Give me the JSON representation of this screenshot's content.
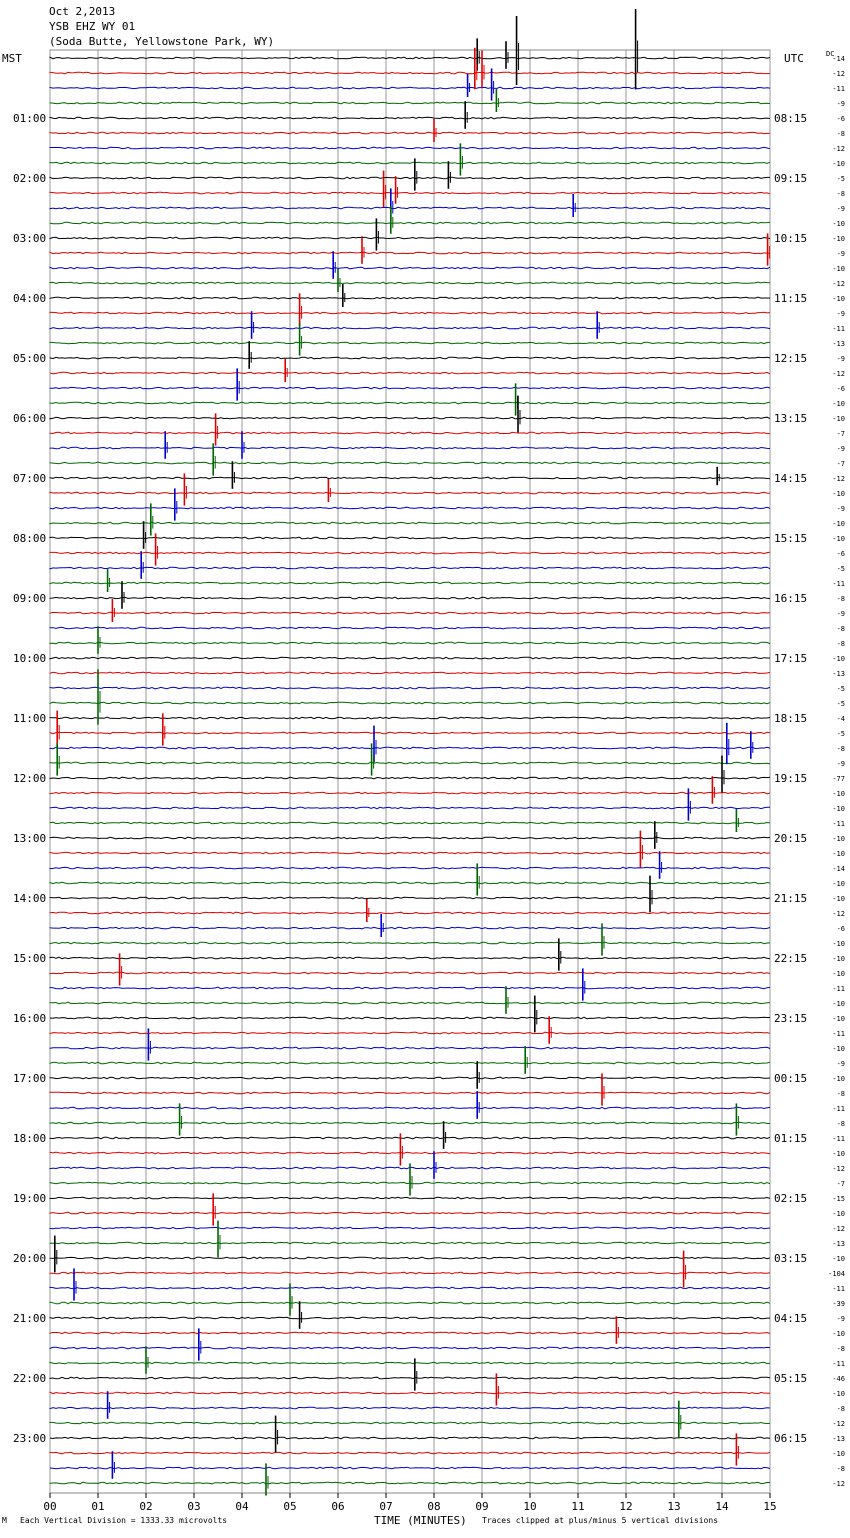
{
  "header": {
    "date": "Oct 2,2013",
    "station": "YSB EHZ WY 01",
    "location": "(Soda Butte, Yellowstone Park, WY)"
  },
  "labels": {
    "left_tz": "MST",
    "right_tz": "UTC",
    "dc": "DC"
  },
  "footer": {
    "scale": "Each Vertical Division = 1333.33 microvolts",
    "clip_note": "Traces clipped at plus/minus 5 vertical divisions",
    "mark": "M"
  },
  "chart_data": {
    "type": "helicorder",
    "xlabel": "TIME (MINUTES)",
    "x_ticks": [
      "00",
      "01",
      "02",
      "03",
      "04",
      "05",
      "06",
      "07",
      "08",
      "09",
      "10",
      "11",
      "12",
      "13",
      "14",
      "15"
    ],
    "x_range": [
      0,
      15
    ],
    "minutes_per_line": 15,
    "line_count": 96,
    "trace_colors": [
      "#000000",
      "#dd0000",
      "#0000cc",
      "#006600"
    ],
    "left_hour_labels": [
      "01:00",
      "02:00",
      "03:00",
      "04:00",
      "05:00",
      "06:00",
      "07:00",
      "08:00",
      "09:00",
      "10:00",
      "11:00",
      "12:00",
      "13:00",
      "14:00",
      "15:00",
      "16:00",
      "17:00",
      "18:00",
      "19:00",
      "20:00",
      "21:00",
      "22:00",
      "23:00"
    ],
    "right_hour_labels": [
      "08:15",
      "09:15",
      "10:15",
      "11:15",
      "12:15",
      "13:15",
      "14:15",
      "15:15",
      "16:15",
      "17:15",
      "18:15",
      "19:15",
      "20:15",
      "21:15",
      "22:15",
      "23:15",
      "00:15",
      "01:15",
      "02:15",
      "03:15",
      "04:15",
      "05:15",
      "06:15"
    ],
    "dc_offsets": [
      -14,
      -12,
      -11,
      -9,
      -6,
      -8,
      -12,
      -10,
      -5,
      -8,
      -9,
      -10,
      -10,
      -9,
      -10,
      -12,
      -10,
      -9,
      -11,
      -13,
      -9,
      -12,
      -6,
      -10,
      -10,
      -7,
      -9,
      -7,
      -12,
      -10,
      -9,
      -10,
      -10,
      -6,
      -5,
      -11,
      -8,
      -9,
      -8,
      -8,
      -10,
      -13,
      -5,
      -5,
      -4,
      -5,
      -8,
      -9,
      -77,
      -10,
      -10,
      -11,
      -10,
      -10,
      -14,
      -10,
      -10,
      -12,
      -6,
      -10,
      -10,
      -10,
      -11,
      -10,
      -10,
      -11,
      -10,
      -9,
      -10,
      -8,
      -11,
      -8,
      -11,
      -10,
      -12,
      -7,
      -15,
      -10,
      -12,
      -13,
      -10,
      -104,
      -11,
      -39,
      -9,
      -10,
      -8,
      -11,
      -46,
      -10,
      -8,
      -12,
      -13,
      -10,
      -8,
      -12
    ],
    "events": [
      {
        "line": 0,
        "minute": 9.72,
        "amp": 30
      },
      {
        "line": 0,
        "minute": 12.2,
        "amp": 35
      },
      {
        "line": 0,
        "minute": 8.9,
        "amp": 14
      },
      {
        "line": 0,
        "minute": 9.5,
        "amp": 12
      },
      {
        "line": 1,
        "minute": 9.0,
        "amp": 16
      },
      {
        "line": 1,
        "minute": 8.85,
        "amp": 18
      },
      {
        "line": 2,
        "minute": 9.2,
        "amp": 14
      },
      {
        "line": 2,
        "minute": 8.7,
        "amp": 10
      },
      {
        "line": 3,
        "minute": 9.3,
        "amp": 10
      },
      {
        "line": 4,
        "minute": 8.65,
        "amp": 12
      },
      {
        "line": 5,
        "minute": 8.0,
        "amp": 10
      },
      {
        "line": 7,
        "minute": 8.55,
        "amp": 14
      },
      {
        "line": 8,
        "minute": 7.6,
        "amp": 14
      },
      {
        "line": 8,
        "minute": 8.3,
        "amp": 12
      },
      {
        "line": 9,
        "minute": 6.95,
        "amp": 16
      },
      {
        "line": 9,
        "minute": 7.2,
        "amp": 12
      },
      {
        "line": 10,
        "minute": 7.1,
        "amp": 14
      },
      {
        "line": 10,
        "minute": 10.9,
        "amp": 10
      },
      {
        "line": 11,
        "minute": 7.1,
        "amp": 12
      },
      {
        "line": 12,
        "minute": 6.8,
        "amp": 14
      },
      {
        "line": 13,
        "minute": 6.5,
        "amp": 12
      },
      {
        "line": 13,
        "minute": 14.95,
        "amp": 14
      },
      {
        "line": 14,
        "minute": 5.9,
        "amp": 12
      },
      {
        "line": 15,
        "minute": 6.0,
        "amp": 10
      },
      {
        "line": 16,
        "minute": 6.1,
        "amp": 10
      },
      {
        "line": 17,
        "minute": 5.2,
        "amp": 14
      },
      {
        "line": 18,
        "minute": 4.2,
        "amp": 12
      },
      {
        "line": 18,
        "minute": 11.4,
        "amp": 12
      },
      {
        "line": 19,
        "minute": 5.2,
        "amp": 14
      },
      {
        "line": 20,
        "minute": 4.15,
        "amp": 12
      },
      {
        "line": 21,
        "minute": 4.9,
        "amp": 10
      },
      {
        "line": 22,
        "minute": 3.9,
        "amp": 14
      },
      {
        "line": 23,
        "minute": 9.7,
        "amp": 14
      },
      {
        "line": 24,
        "minute": 9.75,
        "amp": 16
      },
      {
        "line": 25,
        "minute": 3.45,
        "amp": 14
      },
      {
        "line": 26,
        "minute": 2.4,
        "amp": 12
      },
      {
        "line": 26,
        "minute": 4.0,
        "amp": 12
      },
      {
        "line": 27,
        "minute": 3.4,
        "amp": 14
      },
      {
        "line": 28,
        "minute": 3.8,
        "amp": 12
      },
      {
        "line": 28,
        "minute": 13.9,
        "amp": 8
      },
      {
        "line": 29,
        "minute": 2.8,
        "amp": 14
      },
      {
        "line": 29,
        "minute": 5.8,
        "amp": 10
      },
      {
        "line": 30,
        "minute": 2.6,
        "amp": 14
      },
      {
        "line": 31,
        "minute": 2.1,
        "amp": 14
      },
      {
        "line": 32,
        "minute": 1.95,
        "amp": 12
      },
      {
        "line": 33,
        "minute": 2.2,
        "amp": 14
      },
      {
        "line": 34,
        "minute": 1.9,
        "amp": 12
      },
      {
        "line": 35,
        "minute": 1.2,
        "amp": 10
      },
      {
        "line": 36,
        "minute": 1.5,
        "amp": 12
      },
      {
        "line": 37,
        "minute": 1.3,
        "amp": 10
      },
      {
        "line": 39,
        "minute": 1.0,
        "amp": 12
      },
      {
        "line": 43,
        "minute": 1.0,
        "amp": 24
      },
      {
        "line": 45,
        "minute": 0.15,
        "amp": 16
      },
      {
        "line": 45,
        "minute": 2.35,
        "amp": 14
      },
      {
        "line": 46,
        "minute": 6.75,
        "amp": 16
      },
      {
        "line": 46,
        "minute": 14.1,
        "amp": 18
      },
      {
        "line": 46,
        "minute": 14.6,
        "amp": 12
      },
      {
        "line": 47,
        "minute": 0.15,
        "amp": 14
      },
      {
        "line": 47,
        "minute": 6.7,
        "amp": 14
      },
      {
        "line": 48,
        "minute": 14.0,
        "amp": 16
      },
      {
        "line": 49,
        "minute": 13.8,
        "amp": 12
      },
      {
        "line": 50,
        "minute": 13.3,
        "amp": 14
      },
      {
        "line": 51,
        "minute": 14.3,
        "amp": 10
      },
      {
        "line": 52,
        "minute": 12.6,
        "amp": 12
      },
      {
        "line": 53,
        "minute": 12.3,
        "amp": 16
      },
      {
        "line": 54,
        "minute": 12.7,
        "amp": 12
      },
      {
        "line": 55,
        "minute": 8.9,
        "amp": 14
      },
      {
        "line": 56,
        "minute": 12.5,
        "amp": 16
      },
      {
        "line": 57,
        "minute": 6.6,
        "amp": 10
      },
      {
        "line": 58,
        "minute": 6.9,
        "amp": 10
      },
      {
        "line": 59,
        "minute": 11.5,
        "amp": 14
      },
      {
        "line": 60,
        "minute": 10.6,
        "amp": 14
      },
      {
        "line": 61,
        "minute": 1.45,
        "amp": 14
      },
      {
        "line": 62,
        "minute": 11.1,
        "amp": 14
      },
      {
        "line": 63,
        "minute": 9.5,
        "amp": 12
      },
      {
        "line": 64,
        "minute": 10.1,
        "amp": 16
      },
      {
        "line": 65,
        "minute": 10.4,
        "amp": 12
      },
      {
        "line": 66,
        "minute": 2.05,
        "amp": 14
      },
      {
        "line": 67,
        "minute": 9.9,
        "amp": 12
      },
      {
        "line": 68,
        "minute": 8.9,
        "amp": 12
      },
      {
        "line": 69,
        "minute": 11.5,
        "amp": 14
      },
      {
        "line": 70,
        "minute": 8.9,
        "amp": 12
      },
      {
        "line": 71,
        "minute": 2.7,
        "amp": 14
      },
      {
        "line": 71,
        "minute": 14.3,
        "amp": 14
      },
      {
        "line": 72,
        "minute": 8.2,
        "amp": 12
      },
      {
        "line": 73,
        "minute": 7.3,
        "amp": 14
      },
      {
        "line": 74,
        "minute": 8.0,
        "amp": 12
      },
      {
        "line": 75,
        "minute": 7.5,
        "amp": 14
      },
      {
        "line": 77,
        "minute": 3.4,
        "amp": 14
      },
      {
        "line": 79,
        "minute": 3.5,
        "amp": 16
      },
      {
        "line": 80,
        "minute": 0.1,
        "amp": 16
      },
      {
        "line": 81,
        "minute": 13.2,
        "amp": 16
      },
      {
        "line": 82,
        "minute": 0.5,
        "amp": 14
      },
      {
        "line": 83,
        "minute": 5.0,
        "amp": 14
      },
      {
        "line": 84,
        "minute": 5.2,
        "amp": 12
      },
      {
        "line": 85,
        "minute": 11.8,
        "amp": 12
      },
      {
        "line": 86,
        "minute": 3.1,
        "amp": 14
      },
      {
        "line": 87,
        "minute": 2.0,
        "amp": 12
      },
      {
        "line": 88,
        "minute": 7.6,
        "amp": 14
      },
      {
        "line": 89,
        "minute": 9.3,
        "amp": 14
      },
      {
        "line": 90,
        "minute": 1.2,
        "amp": 12
      },
      {
        "line": 91,
        "minute": 13.1,
        "amp": 16
      },
      {
        "line": 92,
        "minute": 4.7,
        "amp": 16
      },
      {
        "line": 93,
        "minute": 14.3,
        "amp": 14
      },
      {
        "line": 94,
        "minute": 1.3,
        "amp": 12
      },
      {
        "line": 95,
        "minute": 4.5,
        "amp": 14
      }
    ]
  }
}
